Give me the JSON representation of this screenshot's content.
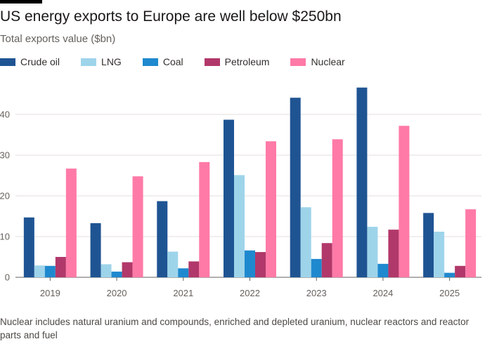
{
  "header": {
    "title": "US energy exports to Europe are well below $250bn",
    "subtitle": "Total exports value ($bn)"
  },
  "footnote": "Nuclear includes natural uranium and compounds, enriched and depleted uranium, nuclear reactors and reactor parts and fuel",
  "chart_data": {
    "type": "bar",
    "title": "US energy exports to Europe are well below $250bn",
    "subtitle": "Total exports value ($bn)",
    "xlabel": "",
    "ylabel": "",
    "categories": [
      "2019",
      "2020",
      "2021",
      "2022",
      "2023",
      "2024",
      "2025"
    ],
    "ylim": [
      0,
      48
    ],
    "yticks": [
      0,
      10,
      20,
      30,
      40
    ],
    "grid": true,
    "legend_position": "top-left",
    "series": [
      {
        "name": "Crude oil",
        "color": "#1f5493",
        "values": [
          14.7,
          13.3,
          18.7,
          38.7,
          44.1,
          46.6,
          15.8
        ]
      },
      {
        "name": "LNG",
        "color": "#9ed4ea",
        "values": [
          2.9,
          3.2,
          6.3,
          25.1,
          17.2,
          12.4,
          11.2
        ]
      },
      {
        "name": "Coal",
        "color": "#1f89cf",
        "values": [
          2.8,
          1.4,
          2.2,
          6.6,
          4.5,
          3.3,
          1.1
        ]
      },
      {
        "name": "Petroleum",
        "color": "#b1386a",
        "values": [
          5.0,
          3.7,
          3.9,
          6.2,
          8.4,
          11.7,
          2.8
        ]
      },
      {
        "name": "Nuclear",
        "color": "#ff7aa7",
        "values": [
          26.7,
          24.8,
          28.3,
          33.4,
          33.9,
          37.2,
          16.7
        ]
      }
    ]
  }
}
